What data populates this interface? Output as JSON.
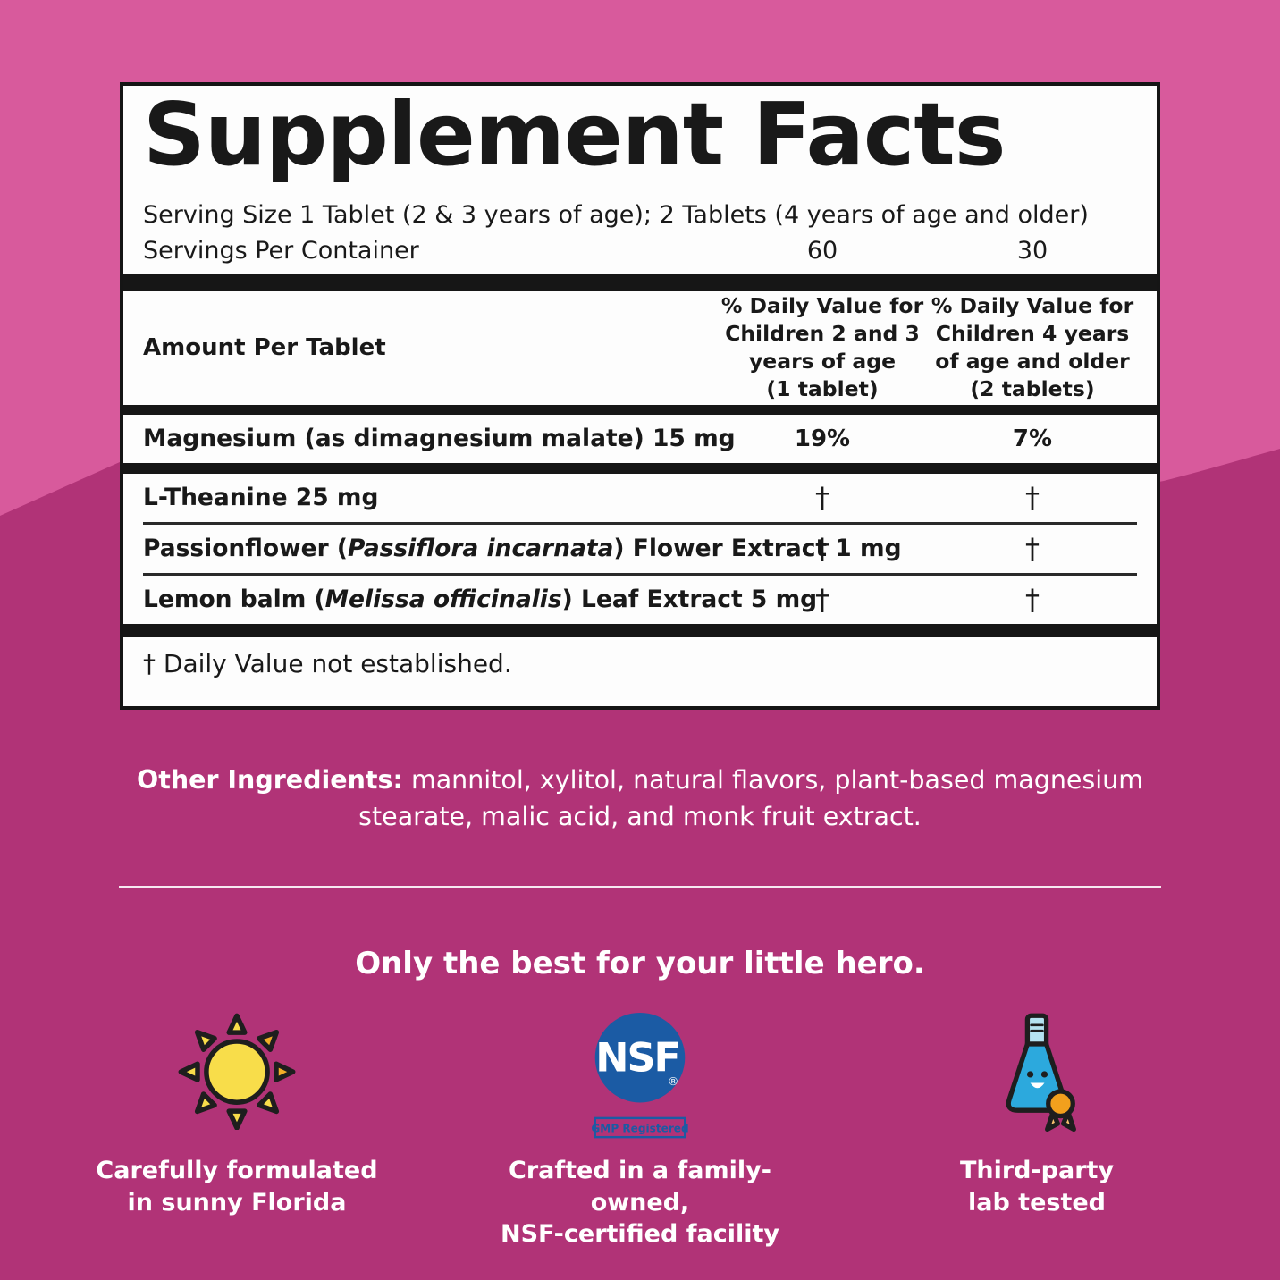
{
  "colors": {
    "bg-top": "#d85a9c",
    "bg-bottom": "#b13377",
    "label-ink": "#191919",
    "nsf-blue": "#1b5ba4",
    "sun-yellow": "#f8dd4a",
    "sun-orange": "#f2ae27",
    "flask-blue": "#2ca9dd",
    "flask-light": "#b5e3f1",
    "medal-orange": "#f2a01d",
    "ribbon-orange": "#f9c36f"
  },
  "supplement_facts": {
    "title": "Supplement Facts",
    "serving_size": "Serving Size 1 Tablet (2 & 3 years of age); 2 Tablets (4 years of age and older)",
    "servings_per_container": {
      "label": "Servings Per Container",
      "values": [
        "60",
        "30"
      ]
    },
    "columns": {
      "amount_header": "Amount Per Tablet",
      "dv_children_2_3": "% Daily Value for\nChildren 2 and 3\nyears of age\n(1 tablet)",
      "dv_children_4": "% Daily Value for\nChildren 4 years\nof age and older\n(2 tablets)"
    },
    "rows": [
      {
        "name_parts": [
          {
            "text": "Magnesium (as dimagnesium malate) 15 mg",
            "italic": false
          }
        ],
        "dv1": "19%",
        "dv2": "7%",
        "separator_after": "thick1"
      },
      {
        "name_parts": [
          {
            "text": "L-Theanine 25 mg",
            "italic": false
          }
        ],
        "dv1": "†",
        "dv2": "†",
        "separator_after": "thin"
      },
      {
        "name_parts": [
          {
            "text": "Passionflower (",
            "italic": false
          },
          {
            "text": "Passiflora incarnata",
            "italic": true
          },
          {
            "text": ") Flower Extract 1 mg",
            "italic": false
          }
        ],
        "dv1": "†",
        "dv2": "†",
        "separator_after": "thin"
      },
      {
        "name_parts": [
          {
            "text": "Lemon balm (",
            "italic": false
          },
          {
            "text": "Melissa officinalis",
            "italic": true
          },
          {
            "text": ") Leaf Extract 5 mg",
            "italic": false
          }
        ],
        "dv1": "†",
        "dv2": "†",
        "separator_after": "thick2"
      }
    ],
    "footnote": "† Daily Value not established."
  },
  "other_ingredients": {
    "label": "Other Ingredients:",
    "text": "mannitol, xylitol, natural flavors, plant-based magnesium stearate, malic acid, and monk fruit extract."
  },
  "hero": {
    "heading": "Only the best for your little hero."
  },
  "features": [
    {
      "icon": "sun-icon",
      "caption": "Carefully formulated\nin sunny Florida"
    },
    {
      "icon": "nsf-badge-icon",
      "caption": "Crafted in a family-owned,\nNSF-certified facility",
      "badge_text": "NSF",
      "badge_mark": "®",
      "badge_sub": "GMP Registered"
    },
    {
      "icon": "lab-flask-icon",
      "caption": "Third-party\nlab tested"
    }
  ]
}
